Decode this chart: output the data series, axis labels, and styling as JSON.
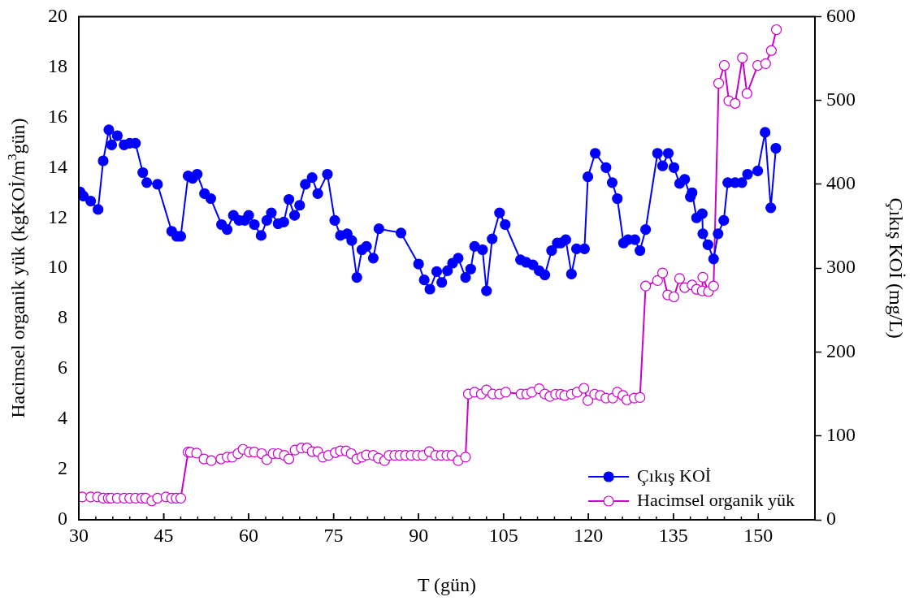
{
  "chart_data": {
    "type": "line",
    "xlabel": "T (gün)",
    "ylabel": "Hacimsel organik yük (kgKOİ/m$^{3}$gün)",
    "y2label": "Çıkış KOİ (mg/L)",
    "xlim": [
      30,
      160
    ],
    "xticks": [
      30,
      45,
      60,
      75,
      90,
      105,
      120,
      135,
      150
    ],
    "ylim": [
      0,
      20
    ],
    "yticks": [
      0,
      2,
      4,
      6,
      8,
      10,
      12,
      14,
      16,
      18,
      20
    ],
    "y2lim": [
      0,
      600
    ],
    "y2ticks": [
      0,
      100,
      200,
      300,
      400,
      500,
      600
    ],
    "grid": false,
    "legend": "bottom right",
    "marker": "circle",
    "line_style": "solid",
    "series": [
      {
        "name": "Çıkış KOİ",
        "color": "#0000ff",
        "type": "line",
        "axis": "y2",
        "x": [
          30.2,
          30.8,
          32.1,
          33.4,
          34.3,
          35.3,
          35.8,
          36.8,
          38,
          39,
          40,
          41.3,
          42,
          43.9,
          46.4,
          47.3,
          48,
          49.3,
          50.1,
          50.9,
          52.2,
          53.3,
          55.2,
          56.2,
          57.3,
          58.3,
          59.3,
          60,
          61,
          62.2,
          63.2,
          64,
          65.2,
          66.2,
          67.1,
          68.1,
          69,
          70,
          71.2,
          72.2,
          73.9,
          75.2,
          76.2,
          77.4,
          78.2,
          79.1,
          80,
          80.8,
          82,
          83,
          86.9,
          90,
          91,
          92,
          93.2,
          94.1,
          95.1,
          96,
          97,
          98.3,
          99.2,
          99.9,
          101.3,
          102,
          103,
          104.3,
          105.3,
          108,
          109,
          110.2,
          111.3,
          112.3,
          113.5,
          114.5,
          115.1,
          116,
          117,
          117.9,
          119.3,
          119.9,
          121.2,
          123.1,
          124.2,
          125.1,
          126.2,
          127,
          128.2,
          129.1,
          130.1,
          132.2,
          133.1,
          134.1,
          135.1,
          136.1,
          137,
          138,
          138.3,
          139.1,
          140.1,
          140.2,
          141.1,
          142.1,
          142.9,
          143.9,
          144.6,
          145.9,
          147.1,
          148.1,
          149.9,
          151.2,
          152.2,
          153.1
        ],
        "values": [
          391,
          386,
          380,
          370,
          428,
          465,
          447,
          458,
          447,
          449,
          449,
          414,
          402,
          400,
          344,
          338,
          338,
          410,
          407,
          412,
          389,
          383,
          352,
          346,
          363,
          357,
          357,
          363,
          352,
          339,
          357,
          366,
          353,
          355,
          382,
          363,
          375,
          400,
          408,
          389,
          412,
          357,
          339,
          341,
          333,
          289,
          322,
          326,
          312,
          347,
          342,
          305,
          286,
          275,
          296,
          283,
          297,
          306,
          312,
          289,
          299,
          326,
          322,
          273,
          335,
          366,
          352,
          310,
          307,
          304,
          297,
          292,
          321,
          330,
          330,
          334,
          293,
          323,
          323,
          409,
          437,
          420,
          402,
          383,
          330,
          334,
          334,
          321,
          346,
          437,
          422,
          437,
          420,
          401,
          406,
          385,
          390,
          360,
          365,
          341,
          328,
          311,
          341,
          357,
          402,
          402,
          402,
          412,
          416,
          462,
          372,
          443
        ]
      },
      {
        "name": "Hacimsel organik yük",
        "color": "#cc00cc",
        "type": "line",
        "axis": "y",
        "x": [
          30.6,
          32.1,
          33.3,
          34.3,
          35.2,
          35.7,
          36.8,
          38,
          39,
          40,
          41.1,
          41.8,
          42.9,
          43.9,
          45.4,
          46.4,
          47.2,
          48,
          49.3,
          49.7,
          50.8,
          52.1,
          53.4,
          55.1,
          56.2,
          57.1,
          58.1,
          59,
          60.1,
          61,
          62.3,
          63.2,
          64.3,
          65.2,
          66.3,
          67.1,
          68.2,
          69.3,
          70.3,
          71.2,
          72.2,
          73.1,
          74.1,
          75.3,
          76.2,
          77.2,
          78.1,
          79.1,
          80,
          80.8,
          82,
          82.9,
          84,
          84.8,
          85.8,
          86.7,
          87.7,
          88.7,
          89.8,
          90.8,
          91.9,
          93,
          94,
          95,
          95.9,
          97,
          98.3,
          98.8,
          99.9,
          101.1,
          102,
          103.1,
          104.3,
          105.4,
          108.1,
          109.1,
          110,
          111.3,
          112.3,
          113.2,
          114.2,
          115.1,
          115.8,
          117,
          118,
          119.2,
          119.9,
          121.1,
          122.1,
          123.1,
          124.3,
          125.1,
          126.1,
          126.8,
          128.1,
          129.1,
          130.1,
          132.2,
          133.1,
          134,
          135.1,
          136.1,
          137,
          138.3,
          139.1,
          140.1,
          140.2,
          141.2,
          142.1,
          143,
          144,
          144.8,
          145.9,
          147.2,
          148,
          149.9,
          151.3,
          152.3,
          153.2
        ],
        "values": [
          0.91,
          0.91,
          0.91,
          0.86,
          0.86,
          0.86,
          0.86,
          0.86,
          0.86,
          0.86,
          0.86,
          0.86,
          0.75,
          0.86,
          0.91,
          0.86,
          0.86,
          0.86,
          2.69,
          2.68,
          2.65,
          2.42,
          2.35,
          2.42,
          2.49,
          2.49,
          2.63,
          2.8,
          2.69,
          2.69,
          2.63,
          2.39,
          2.63,
          2.63,
          2.56,
          2.42,
          2.77,
          2.85,
          2.85,
          2.71,
          2.71,
          2.49,
          2.56,
          2.67,
          2.74,
          2.74,
          2.63,
          2.42,
          2.49,
          2.58,
          2.56,
          2.45,
          2.35,
          2.56,
          2.56,
          2.56,
          2.56,
          2.56,
          2.56,
          2.56,
          2.71,
          2.56,
          2.56,
          2.56,
          2.56,
          2.35,
          2.49,
          5.0,
          5.07,
          5.0,
          5.16,
          5.0,
          5.0,
          5.07,
          5.0,
          5.0,
          5.07,
          5.21,
          5.0,
          4.9,
          4.99,
          4.99,
          4.94,
          4.99,
          5.07,
          5.23,
          4.74,
          4.99,
          4.94,
          4.84,
          4.84,
          5.07,
          4.94,
          4.77,
          4.84,
          4.86,
          9.29,
          9.51,
          9.81,
          8.94,
          8.86,
          9.59,
          9.23,
          9.33,
          9.16,
          9.1,
          9.64,
          9.07,
          9.29,
          17.35,
          18.06,
          16.65,
          16.55,
          18.36,
          16.94,
          18.06,
          18.13,
          18.65,
          19.48
        ]
      }
    ]
  }
}
